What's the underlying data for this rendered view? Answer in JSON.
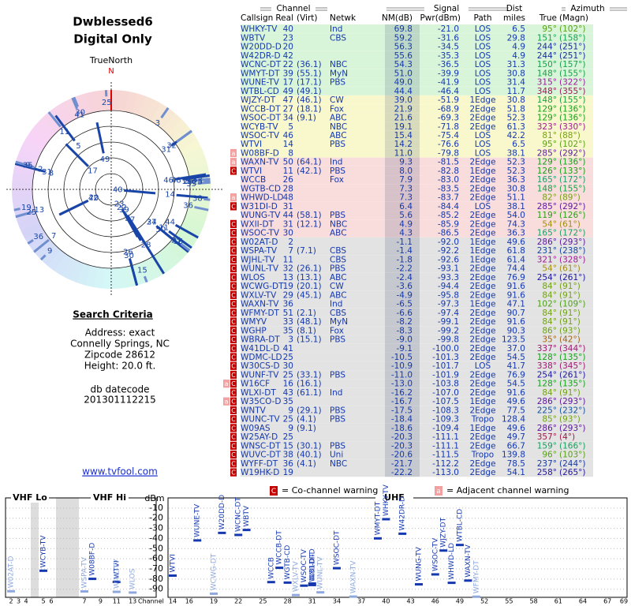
{
  "header": {
    "title": "Dwblessed6",
    "subtitle": "Digital Only"
  },
  "polar": {
    "north_label": "TrueNorth",
    "north_marker": "N"
  },
  "search": {
    "heading": "Search Criteria",
    "lines": [
      "Address: exact",
      "Connelly Springs, NC",
      "Zipcode 28612",
      "Height: 20.0 ft."
    ]
  },
  "db": {
    "label": "db datecode",
    "value": "201301112215"
  },
  "link": "www.tvfool.com",
  "table": {
    "groups": [
      "Channel",
      "Signal",
      "Dist",
      "Azimuth"
    ],
    "columns": [
      "Callsign",
      "Real",
      "(Virt)",
      "Netwk",
      "NM(dB)",
      "Pwr(dBm)",
      "Path",
      "miles",
      "True",
      "(Magn)"
    ],
    "rows": [
      {
        "c": "WHKY-TV",
        "ch": 40,
        "n": "Ind",
        "nm": "69.8",
        "pwr": "-21.0",
        "path": "LOS",
        "d": "6.5",
        "t": "95°",
        "m": "(102°)"
      },
      {
        "c": "WBTV",
        "ch": 23,
        "n": "CBS",
        "nm": "59.2",
        "pwr": "-31.6",
        "path": "LOS",
        "d": "29.8",
        "t": "151°",
        "m": "(158°)"
      },
      {
        "c": "W20DD-D",
        "ch": 20,
        "nm": "56.3",
        "pwr": "-34.5",
        "path": "LOS",
        "d": "4.9",
        "t": "244°",
        "m": "(251°)"
      },
      {
        "c": "W42DR-D",
        "ch": 42,
        "nm": "55.6",
        "pwr": "-35.3",
        "path": "LOS",
        "d": "4.9",
        "t": "244°",
        "m": "(251°)"
      },
      {
        "c": "WCNC-DT",
        "ch": 22,
        "v": "(36.1)",
        "n": "NBC",
        "nm": "54.3",
        "pwr": "-36.5",
        "path": "LOS",
        "d": "31.3",
        "t": "150°",
        "m": "(157°)"
      },
      {
        "c": "WMYT-DT",
        "ch": 39,
        "v": "(55.1)",
        "n": "MyN",
        "nm": "51.0",
        "pwr": "-39.9",
        "path": "LOS",
        "d": "30.8",
        "t": "148°",
        "m": "(155°)"
      },
      {
        "c": "WUNE-TV",
        "ch": 17,
        "v": "(17.1)",
        "n": "PBS",
        "nm": "49.0",
        "pwr": "-41.9",
        "path": "LOS",
        "d": "31.4",
        "t": "315°",
        "m": "(322°)"
      },
      {
        "c": "WTBL-CD",
        "ch": 49,
        "v": "(49.1)",
        "nm": "44.4",
        "pwr": "-46.4",
        "path": "LOS",
        "d": "11.7",
        "t": "348°",
        "m": "(355°)"
      },
      {
        "c": "WJZY-DT",
        "ch": 47,
        "v": "(46.1)",
        "n": "CW",
        "nm": "39.0",
        "pwr": "-51.9",
        "path": "1Edge",
        "d": "30.8",
        "t": "148°",
        "m": "(155°)"
      },
      {
        "c": "WCCB-DT",
        "ch": 27,
        "v": "(18.1)",
        "n": "Fox",
        "nm": "21.9",
        "pwr": "-68.9",
        "path": "2Edge",
        "d": "51.8",
        "t": "129°",
        "m": "(136°)"
      },
      {
        "c": "WSOC-DT",
        "ch": 34,
        "v": "(9.1)",
        "n": "ABC",
        "nm": "21.6",
        "pwr": "-69.3",
        "path": "2Edge",
        "d": "52.3",
        "t": "129°",
        "m": "(136°)"
      },
      {
        "c": "WCYB-TV",
        "ch": 5,
        "n": "NBC",
        "nm": "19.1",
        "pwr": "-71.8",
        "path": "2Edge",
        "d": "61.3",
        "t": "323°",
        "m": "(330°)"
      },
      {
        "c": "WSOC-TV",
        "ch": 46,
        "n": "ABC",
        "nm": "15.4",
        "pwr": "-75.4",
        "path": "LOS",
        "d": "42.2",
        "t": "81°",
        "m": "(88°)"
      },
      {
        "c": "WTVI",
        "ch": 14,
        "n": "PBS",
        "nm": "14.2",
        "pwr": "-76.6",
        "path": "LOS",
        "d": "6.5",
        "t": "95°",
        "m": "(102°)"
      },
      {
        "c": "W08BF-D",
        "ch": 8,
        "nm": "11.0",
        "pwr": "-79.8",
        "path": "LOS",
        "d": "38.1",
        "t": "285°",
        "m": "(292°)",
        "w": [
          "a"
        ]
      },
      {
        "c": "WAXN-TV",
        "ch": 50,
        "v": "(64.1)",
        "n": "Ind",
        "nm": "9.3",
        "pwr": "-81.5",
        "path": "2Edge",
        "d": "52.3",
        "t": "129°",
        "m": "(136°)",
        "w": [
          "a"
        ]
      },
      {
        "c": "WTVI",
        "ch": 11,
        "v": "(42.1)",
        "n": "PBS",
        "nm": "8.0",
        "pwr": "-82.8",
        "path": "1Edge",
        "d": "52.3",
        "t": "126°",
        "m": "(133°)",
        "w": [
          "C"
        ]
      },
      {
        "c": "WCCB",
        "ch": 26,
        "n": "Fox",
        "nm": "7.9",
        "pwr": "-83.0",
        "path": "2Edge",
        "d": "36.3",
        "t": "165°",
        "m": "(172°)"
      },
      {
        "c": "WGTB-CD",
        "ch": 28,
        "nm": "7.3",
        "pwr": "-83.5",
        "path": "2Edge",
        "d": "30.8",
        "t": "148°",
        "m": "(155°)"
      },
      {
        "c": "WHWD-LD",
        "ch": 48,
        "nm": "7.3",
        "pwr": "-83.7",
        "path": "2Edge",
        "d": "51.1",
        "t": "82°",
        "m": "(89°)",
        "w": [
          "a"
        ]
      },
      {
        "c": "W31DI-D",
        "ch": 31,
        "nm": "6.4",
        "pwr": "-84.4",
        "path": "LOS",
        "d": "38.1",
        "t": "285°",
        "m": "(292°)",
        "w": [
          "C"
        ]
      },
      {
        "c": "WUNG-TV",
        "ch": 44,
        "v": "(58.1)",
        "n": "PBS",
        "nm": "5.6",
        "pwr": "-85.2",
        "path": "2Edge",
        "d": "54.0",
        "t": "119°",
        "m": "(126°)"
      },
      {
        "c": "WXII-DT",
        "ch": 31,
        "v": "(12.1)",
        "n": "NBC",
        "nm": "4.9",
        "pwr": "-85.9",
        "path": "2Edge",
        "d": "74.3",
        "t": "54°",
        "m": "(61°)",
        "w": [
          "C"
        ]
      },
      {
        "c": "WSOC-TV",
        "ch": 30,
        "n": "ABC",
        "nm": "4.3",
        "pwr": "-86.5",
        "path": "2Edge",
        "d": "36.3",
        "t": "165°",
        "m": "(172°)",
        "w": [
          "C"
        ]
      },
      {
        "c": "W02AT-D",
        "ch": 2,
        "nm": "-1.1",
        "pwr": "-92.0",
        "path": "1Edge",
        "d": "49.6",
        "t": "286°",
        "m": "(293°)",
        "w": [
          "C"
        ]
      },
      {
        "c": "WSPA-TV",
        "ch": 7,
        "v": "(7.1)",
        "n": "CBS",
        "nm": "-1.4",
        "pwr": "-92.2",
        "path": "1Edge",
        "d": "61.8",
        "t": "231°",
        "m": "(238°)",
        "w": [
          "C"
        ]
      },
      {
        "c": "WJHL-TV",
        "ch": 11,
        "n": "CBS",
        "nm": "-1.8",
        "pwr": "-92.6",
        "path": "1Edge",
        "d": "61.4",
        "t": "321°",
        "m": "(328°)",
        "w": [
          "C"
        ]
      },
      {
        "c": "WUNL-TV",
        "ch": 32,
        "v": "(26.1)",
        "n": "PBS",
        "nm": "-2.2",
        "pwr": "-93.1",
        "path": "2Edge",
        "d": "74.4",
        "t": "54°",
        "m": "(61°)",
        "w": [
          "C"
        ]
      },
      {
        "c": "WLOS",
        "ch": 13,
        "v": "(13.1)",
        "n": "ABC",
        "nm": "-2.4",
        "pwr": "-93.3",
        "path": "2Edge",
        "d": "76.9",
        "t": "254°",
        "m": "(261°)",
        "w": [
          "C"
        ]
      },
      {
        "c": "WCWG-DT",
        "ch": 19,
        "v": "(20.1)",
        "n": "CW",
        "nm": "-3.6",
        "pwr": "-94.4",
        "path": "2Edge",
        "d": "91.6",
        "t": "84°",
        "m": "(91°)",
        "w": [
          "C"
        ]
      },
      {
        "c": "WXLV-TV",
        "ch": 29,
        "v": "(45.1)",
        "n": "ABC",
        "nm": "-4.9",
        "pwr": "-95.8",
        "path": "2Edge",
        "d": "91.6",
        "t": "84°",
        "m": "(91°)",
        "w": [
          "C"
        ]
      },
      {
        "c": "WAXN-TV",
        "ch": 36,
        "n": "Ind",
        "nm": "-6.5",
        "pwr": "-97.3",
        "path": "1Edge",
        "d": "47.1",
        "t": "102°",
        "m": "(109°)",
        "w": [
          "C"
        ]
      },
      {
        "c": "WFMY-DT",
        "ch": 51,
        "v": "(2.1)",
        "n": "CBS",
        "nm": "-6.6",
        "pwr": "-97.4",
        "path": "2Edge",
        "d": "90.7",
        "t": "84°",
        "m": "(91°)",
        "w": [
          "C"
        ]
      },
      {
        "c": "WMYV",
        "ch": 33,
        "v": "(48.1)",
        "n": "MyN",
        "nm": "-8.2",
        "pwr": "-99.1",
        "path": "2Edge",
        "d": "91.6",
        "t": "84°",
        "m": "(91°)",
        "w": [
          "C"
        ]
      },
      {
        "c": "WGHP",
        "ch": 35,
        "v": "(8.1)",
        "n": "Fox",
        "nm": "-8.3",
        "pwr": "-99.2",
        "path": "2Edge",
        "d": "90.3",
        "t": "86°",
        "m": "(93°)",
        "w": [
          "C"
        ]
      },
      {
        "c": "WBRA-DT",
        "ch": 3,
        "v": "(15.1)",
        "n": "PBS",
        "nm": "-9.0",
        "pwr": "-99.8",
        "path": "2Edge",
        "d": "123.5",
        "t": "35°",
        "m": "(42°)",
        "w": [
          "C"
        ]
      },
      {
        "c": "W41DL-D",
        "ch": 41,
        "nm": "-9.1",
        "pwr": "-100.0",
        "path": "2Edge",
        "d": "37.0",
        "t": "337°",
        "m": "(344°)",
        "w": [
          "C"
        ]
      },
      {
        "c": "WDMC-LD",
        "ch": 25,
        "nm": "-10.5",
        "pwr": "-101.3",
        "path": "2Edge",
        "d": "54.5",
        "t": "128°",
        "m": "(135°)",
        "w": [
          "C"
        ]
      },
      {
        "c": "W30CS-D",
        "ch": 30,
        "nm": "-10.9",
        "pwr": "-101.7",
        "path": "LOS",
        "d": "41.7",
        "t": "338°",
        "m": "(345°)",
        "w": [
          "C"
        ]
      },
      {
        "c": "WUNF-TV",
        "ch": 25,
        "v": "(33.1)",
        "n": "PBS",
        "nm": "-11.0",
        "pwr": "-101.9",
        "path": "2Edge",
        "d": "76.9",
        "t": "254°",
        "m": "(261°)",
        "w": [
          "C"
        ]
      },
      {
        "c": "W16CF",
        "ch": 16,
        "v": "(16.1)",
        "nm": "-13.0",
        "pwr": "-103.8",
        "path": "2Edge",
        "d": "54.5",
        "t": "128°",
        "m": "(135°)",
        "w": [
          "a",
          "C"
        ]
      },
      {
        "c": "WLXI-DT",
        "ch": 43,
        "v": "(61.1)",
        "n": "Ind",
        "nm": "-16.2",
        "pwr": "-107.0",
        "path": "2Edge",
        "d": "91.6",
        "t": "84°",
        "m": "(91°)",
        "w": [
          "C"
        ]
      },
      {
        "c": "W35CO-D",
        "ch": 35,
        "nm": "-16.7",
        "pwr": "-107.5",
        "path": "1Edge",
        "d": "49.6",
        "t": "286°",
        "m": "(293°)",
        "w": [
          "a",
          "C"
        ]
      },
      {
        "c": "WNTV",
        "ch": 9,
        "v": "(29.1)",
        "n": "PBS",
        "nm": "-17.5",
        "pwr": "-108.3",
        "path": "2Edge",
        "d": "77.5",
        "t": "225°",
        "m": "(232°)",
        "w": [
          "C"
        ]
      },
      {
        "c": "WUNC-TV",
        "ch": 25,
        "v": "(4.1)",
        "n": "PBS",
        "nm": "-18.4",
        "pwr": "-109.3",
        "path": "Tropo",
        "d": "128.4",
        "t": "85°",
        "m": "(93°)",
        "w": [
          "C"
        ]
      },
      {
        "c": "W09AS",
        "ch": 9,
        "v": "(9.1)",
        "nm": "-18.6",
        "pwr": "-109.4",
        "path": "1Edge",
        "d": "49.6",
        "t": "286°",
        "m": "(293°)",
        "w": [
          "C"
        ]
      },
      {
        "c": "W25AY-D",
        "ch": 25,
        "nm": "-20.3",
        "pwr": "-111.1",
        "path": "2Edge",
        "d": "49.7",
        "t": "357°",
        "m": "(4°)",
        "w": [
          "C"
        ]
      },
      {
        "c": "WNSC-DT",
        "ch": 15,
        "v": "(30.1)",
        "n": "PBS",
        "nm": "-20.3",
        "pwr": "-111.1",
        "path": "2Edge",
        "d": "66.7",
        "t": "159°",
        "m": "(166°)",
        "w": [
          "C"
        ]
      },
      {
        "c": "WUVC-DT",
        "ch": 38,
        "v": "(40.1)",
        "n": "Uni",
        "nm": "-20.6",
        "pwr": "-111.5",
        "path": "Tropo",
        "d": "139.8",
        "t": "96°",
        "m": "(103°)",
        "w": [
          "C"
        ]
      },
      {
        "c": "WYFF-DT",
        "ch": 36,
        "v": "(4.1)",
        "n": "NBC",
        "nm": "-21.7",
        "pwr": "-112.2",
        "path": "2Edge",
        "d": "78.5",
        "t": "237°",
        "m": "(244°)",
        "w": [
          "C"
        ]
      },
      {
        "c": "W19HK-D",
        "ch": 19,
        "nm": "-22.2",
        "pwr": "-113.0",
        "path": "2Edge",
        "d": "54.1",
        "t": "258°",
        "m": "(265°)",
        "w": [
          "C"
        ]
      }
    ]
  },
  "spectrum": {
    "panels": [
      "VHF Lo",
      "VHF Hi",
      "UHF"
    ],
    "y_label": "dBm",
    "x_label": "Channel",
    "ylim": [
      0,
      -98
    ],
    "yticks": [
      -10,
      -20,
      -30,
      -40,
      -50,
      -60,
      -70,
      -80,
      -90
    ],
    "xticks": [
      2,
      3,
      4,
      5,
      6,
      7,
      9,
      11,
      13,
      14,
      16,
      19,
      22,
      25,
      28,
      31,
      34,
      37,
      40,
      43,
      46,
      49,
      52,
      55,
      58,
      61,
      64,
      67,
      69
    ],
    "legend": {
      "co_mark": "C",
      "co": "= Co-channel warning",
      "adj_mark": "a",
      "adj": "= Adjacent channel warning"
    }
  }
}
